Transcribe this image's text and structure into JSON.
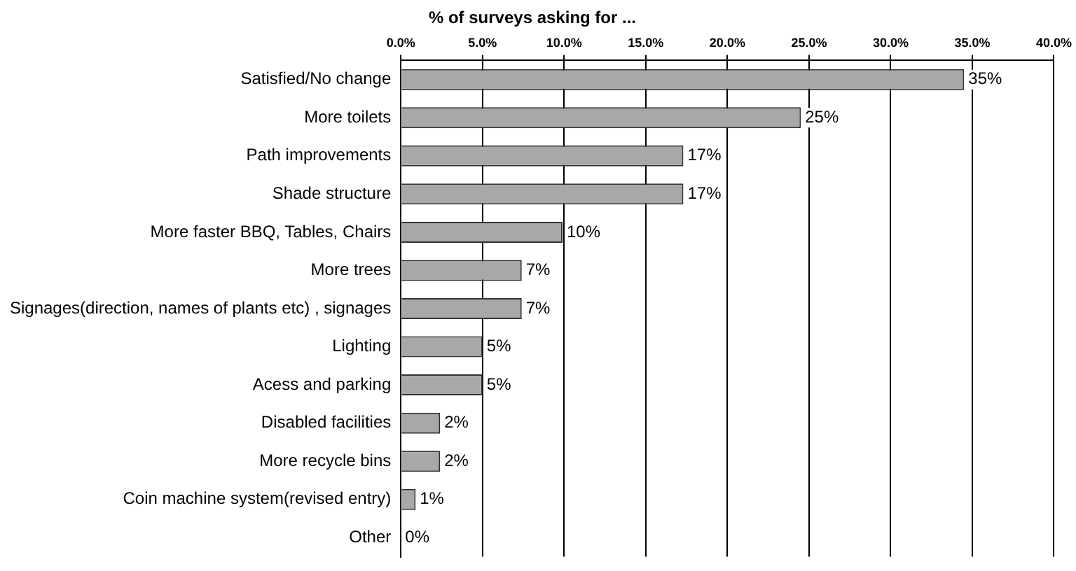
{
  "chart_data": {
    "type": "bar",
    "orientation": "horizontal",
    "title": "% of surveys asking for ...",
    "categories": [
      "Satisfied/No change",
      "More toilets",
      "Path improvements",
      "Shade structure",
      "More faster BBQ, Tables, Chairs",
      "More trees",
      "Signages(direction, names of plants etc) , signages",
      "Lighting",
      "Acess and parking",
      "Disabled facilities",
      "More recycle bins",
      "Coin machine system(revised entry)",
      "Other"
    ],
    "values": [
      34.5,
      24.5,
      17.3,
      17.3,
      9.9,
      7.4,
      7.4,
      5.0,
      5.0,
      2.4,
      2.4,
      0.9,
      0
    ],
    "value_labels": [
      "35%",
      "25%",
      "17%",
      "17%",
      "10%",
      "7%",
      "7%",
      "5%",
      "5%",
      "2%",
      "2%",
      "1%",
      "0%"
    ],
    "color": "#a8a8a8",
    "xlim": [
      0,
      40
    ],
    "xticks": [
      {
        "value": 0,
        "label": "0.0%"
      },
      {
        "value": 5,
        "label": "5.0%"
      },
      {
        "value": 10,
        "label": "10.0%"
      },
      {
        "value": 15,
        "label": "15.0%"
      },
      {
        "value": 20,
        "label": "20.0%"
      },
      {
        "value": 25,
        "label": "25.0%"
      },
      {
        "value": 30,
        "label": "30.0%"
      },
      {
        "value": 35,
        "label": "35.0%"
      },
      {
        "value": 40,
        "label": "40.0%"
      }
    ],
    "grid": "x"
  }
}
